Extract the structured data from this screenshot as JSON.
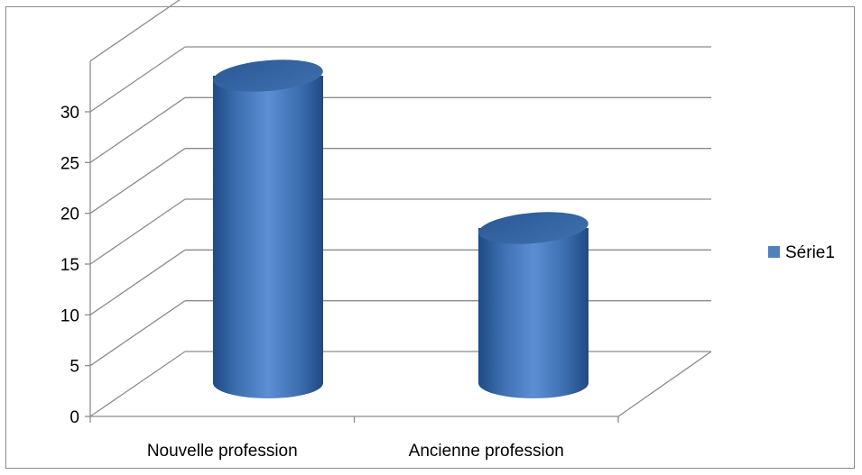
{
  "chart_data": {
    "type": "bar",
    "bar_shape": "cylinder",
    "categories": [
      "Nouvelle profession",
      "Ancienne profession"
    ],
    "series": [
      {
        "name": "Série1",
        "values": [
          30,
          15
        ],
        "color": "#4f81bd"
      }
    ],
    "ylim": [
      0,
      35
    ],
    "yticks": [
      0,
      5,
      10,
      15,
      20,
      25,
      30
    ],
    "grid": true,
    "legend_position": "right"
  }
}
